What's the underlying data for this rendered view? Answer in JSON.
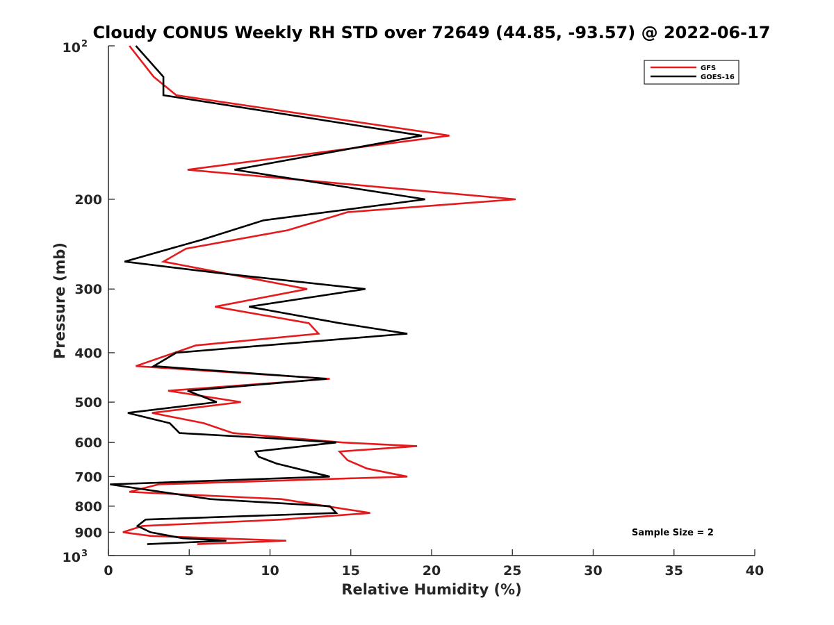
{
  "chart_data": {
    "type": "line",
    "title": "Cloudy CONUS Weekly RH STD over 72649 (44.85, -93.57) @ 2022-06-17",
    "xlabel": "Relative Humidity (%)",
    "ylabel": "Pressure (mb)",
    "xlim": [
      0,
      40
    ],
    "ylim": [
      100,
      1000
    ],
    "y_scale": "log",
    "y_reversed": true,
    "grid": false,
    "legend_position": "top-right",
    "x_ticks": [
      "0",
      "5",
      "10",
      "15",
      "20",
      "25",
      "30",
      "35",
      "40"
    ],
    "y_ticks": [
      {
        "value": 100,
        "base": "10",
        "exp": "2"
      },
      {
        "value": 200,
        "label": "200"
      },
      {
        "value": 300,
        "label": "300"
      },
      {
        "value": 400,
        "label": "400"
      },
      {
        "value": 500,
        "label": "500"
      },
      {
        "value": 600,
        "label": "600"
      },
      {
        "value": 700,
        "label": "700"
      },
      {
        "value": 800,
        "label": "800"
      },
      {
        "value": 900,
        "label": "900"
      },
      {
        "value": 1000,
        "base": "10",
        "exp": "3"
      }
    ],
    "annotation": "Sample Size = 2",
    "series": [
      {
        "name": "GFS",
        "color": "#e41a1c",
        "points": [
          [
            1.3,
            100
          ],
          [
            2.8,
            115
          ],
          [
            4.2,
            125
          ],
          [
            21.1,
            150
          ],
          [
            4.9,
            175
          ],
          [
            25.2,
            200
          ],
          [
            14.8,
            212
          ],
          [
            11.1,
            230
          ],
          [
            4.8,
            250
          ],
          [
            3.4,
            265
          ],
          [
            12.3,
            300
          ],
          [
            6.6,
            325
          ],
          [
            12.4,
            350
          ],
          [
            13.0,
            367
          ],
          [
            5.4,
            387
          ],
          [
            1.7,
            425
          ],
          [
            13.7,
            450
          ],
          [
            3.7,
            475
          ],
          [
            8.2,
            500
          ],
          [
            2.7,
            525
          ],
          [
            5.9,
            550
          ],
          [
            7.7,
            575
          ],
          [
            14.5,
            600
          ],
          [
            19.1,
            610
          ],
          [
            14.3,
            625
          ],
          [
            14.8,
            650
          ],
          [
            16.0,
            675
          ],
          [
            18.5,
            700
          ],
          [
            3.1,
            725
          ],
          [
            1.3,
            750
          ],
          [
            10.7,
            775
          ],
          [
            16.2,
            825
          ],
          [
            10.7,
            850
          ],
          [
            2.1,
            875
          ],
          [
            0.9,
            900
          ],
          [
            2.6,
            915
          ],
          [
            11.0,
            935
          ],
          [
            5.5,
            950
          ]
        ]
      },
      {
        "name": "GOES-16",
        "color": "#000000",
        "points": [
          [
            1.7,
            100
          ],
          [
            3.4,
            115
          ],
          [
            3.4,
            125
          ],
          [
            19.4,
            150
          ],
          [
            7.8,
            175
          ],
          [
            19.6,
            200
          ],
          [
            9.6,
            220
          ],
          [
            5.8,
            240
          ],
          [
            1.0,
            265
          ],
          [
            7.2,
            280
          ],
          [
            15.9,
            300
          ],
          [
            8.7,
            325
          ],
          [
            14.3,
            350
          ],
          [
            18.5,
            367
          ],
          [
            4.2,
            400
          ],
          [
            2.8,
            425
          ],
          [
            13.5,
            450
          ],
          [
            4.9,
            475
          ],
          [
            6.7,
            500
          ],
          [
            1.2,
            525
          ],
          [
            3.8,
            550
          ],
          [
            4.4,
            575
          ],
          [
            10.6,
            590
          ],
          [
            14.1,
            600
          ],
          [
            9.1,
            625
          ],
          [
            9.3,
            640
          ],
          [
            10.4,
            660
          ],
          [
            13.7,
            700
          ],
          [
            0.1,
            725
          ],
          [
            6.3,
            775
          ],
          [
            13.7,
            800
          ],
          [
            14.1,
            825
          ],
          [
            2.3,
            850
          ],
          [
            1.8,
            875
          ],
          [
            2.6,
            900
          ],
          [
            4.6,
            925
          ],
          [
            7.3,
            935
          ],
          [
            2.4,
            950
          ]
        ]
      }
    ]
  }
}
